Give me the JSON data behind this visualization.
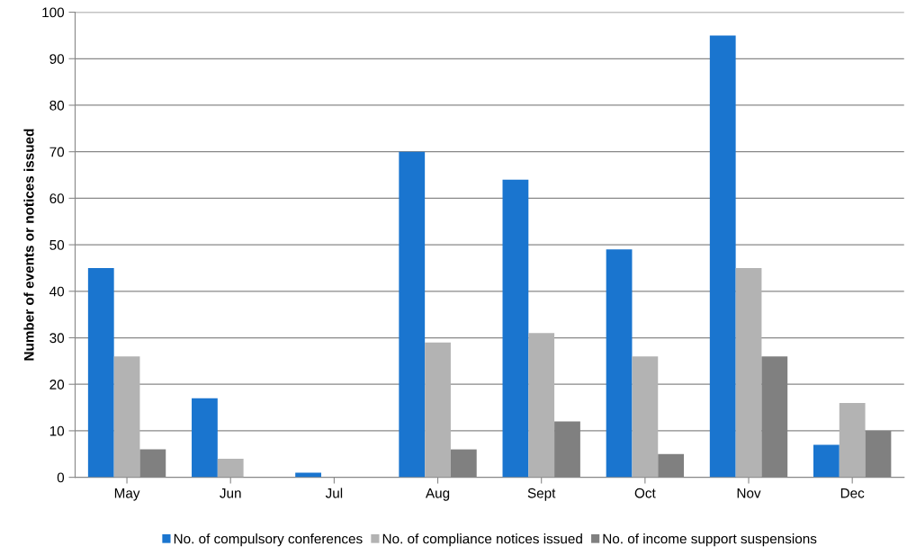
{
  "chart_data": {
    "type": "bar",
    "ylabel": "Number of events or notices issued",
    "categories": [
      "May",
      "Jun",
      "Jul",
      "Aug",
      "Sept",
      "Oct",
      "Nov",
      "Dec"
    ],
    "series": [
      {
        "name": "No. of compulsory conferences",
        "color": "#1a75cf",
        "values": [
          45,
          17,
          1,
          70,
          64,
          49,
          95,
          7
        ]
      },
      {
        "name": "No. of compliance notices issued",
        "color": "#b3b3b3",
        "values": [
          26,
          4,
          0,
          29,
          31,
          26,
          45,
          16
        ]
      },
      {
        "name": "No. of income support suspensions",
        "color": "#808080",
        "values": [
          6,
          0,
          0,
          6,
          12,
          5,
          26,
          10
        ]
      }
    ],
    "ylim": [
      0,
      100
    ],
    "yticks": [
      0,
      10,
      20,
      30,
      40,
      50,
      60,
      70,
      80,
      90,
      100
    ],
    "grid": "y",
    "legend": "bottom"
  }
}
